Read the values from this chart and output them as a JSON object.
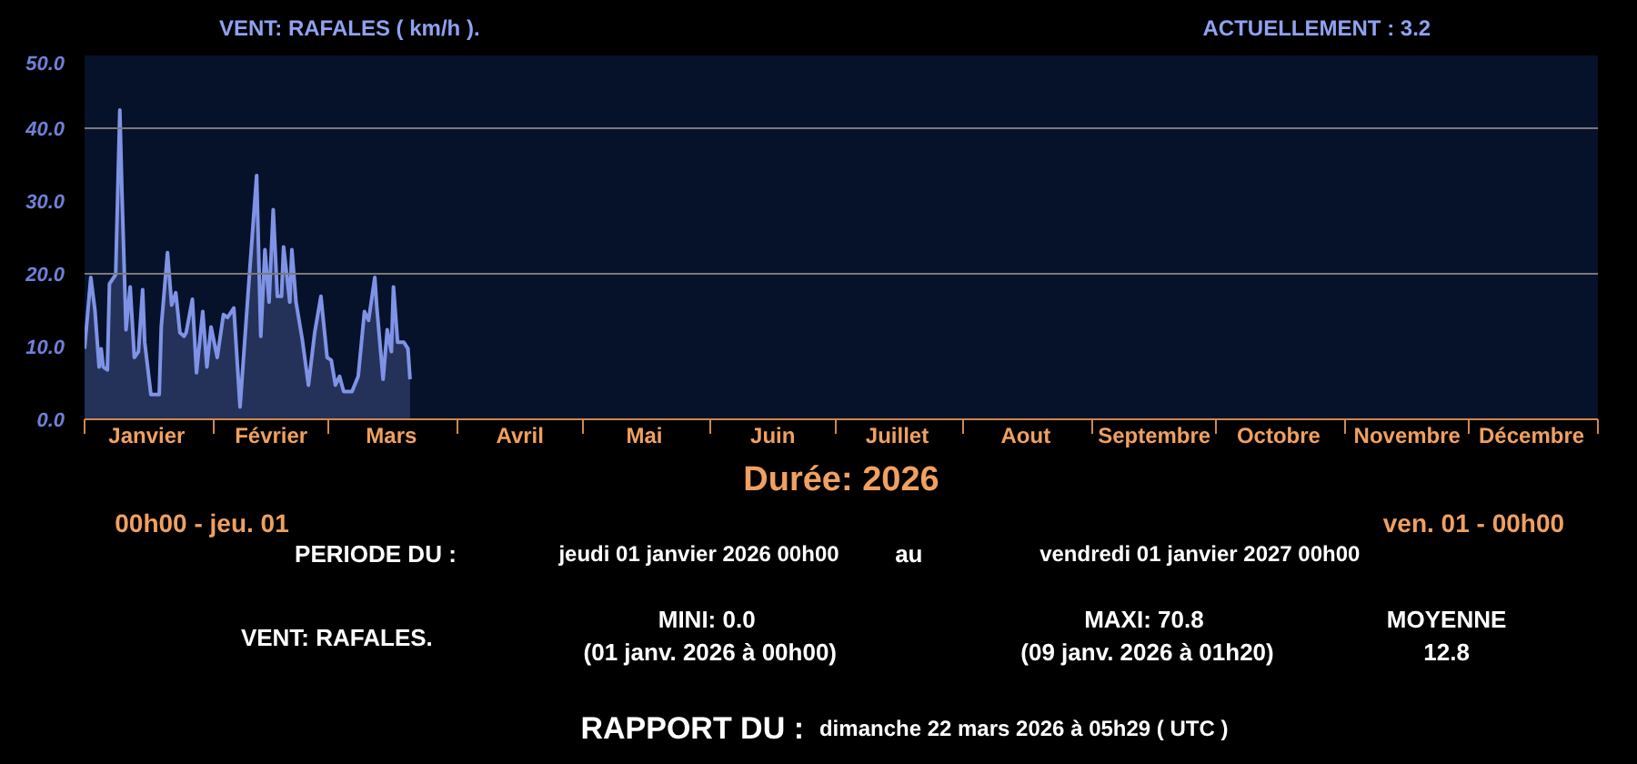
{
  "chart_data": {
    "type": "area",
    "title": "VENT: RAFALES ( km/h ).",
    "xlabel": "Durée: 2026",
    "annotations": [
      "ACTUELLEMENT :    3.2",
      "00h00 - jeu. 01",
      "ven. 01 - 00h00",
      "PERIODE DU    :",
      "jeudi 01 janvier 2026 00h00",
      "au",
      "vendredi 01 janvier 2027 00h00",
      "VENT: RAFALES.",
      "MINI:  0.0",
      "(01 janv. 2026 à 00h00)",
      "MAXI:  70.8",
      "(09 janv. 2026 à 01h20)",
      "MOYENNE",
      "12.8",
      "RAPPORT DU :",
      "dimanche 22 mars 2026 à 05h29 ( UTC )"
    ],
    "x": [
      "2026-01-01T00:00",
      "2026-01-02T12:00",
      "2026-01-03T12:00",
      "2026-01-04T12:00",
      "2026-01-05T00:00",
      "2026-01-05T12:00",
      "2026-01-06T12:00",
      "2026-01-07T00:00",
      "2026-01-08T12:00",
      "2026-01-09T12:00",
      "2026-01-10T00:00",
      "2026-01-11T00:00",
      "2026-01-12T00:00",
      "2026-01-13T00:00",
      "2026-01-14T00:00",
      "2026-01-15T00:00",
      "2026-01-15T12:00",
      "2026-01-17T00:00",
      "2026-01-19T00:00",
      "2026-01-19T12:00",
      "2026-01-21T00:00",
      "2026-01-22T00:00",
      "2026-01-23T00:00",
      "2026-01-24T00:00",
      "2026-01-25T00:00",
      "2026-01-25T12:00",
      "2026-01-27T00:00",
      "2026-01-28T00:00",
      "2026-01-29T12:00",
      "2026-01-30T12:00",
      "2026-01-31T12:00",
      "2026-02-02T00:00",
      "2026-02-03T12:00",
      "2026-02-04T12:00",
      "2026-02-06T00:00",
      "2026-02-07T12:00",
      "2026-02-09T12:00",
      "2026-02-11T12:00",
      "2026-02-12T12:00",
      "2026-02-13T12:00",
      "2026-02-14T12:00",
      "2026-02-15T12:00",
      "2026-02-16T12:00",
      "2026-02-17T12:00",
      "2026-02-18T00:00",
      "2026-02-19T12:00",
      "2026-02-20T00:00",
      "2026-02-21T00:00",
      "2026-02-22T12:00",
      "2026-02-24T00:00",
      "2026-02-25T12:00",
      "2026-02-27T00:00",
      "2026-02-28T12:00",
      "2026-03-01T12:00",
      "2026-03-02T12:00",
      "2026-03-03T12:00",
      "2026-03-04T12:00",
      "2026-03-06T12:00",
      "2026-03-08T00:00",
      "2026-03-09T12:00",
      "2026-03-10T12:00",
      "2026-03-12T00:00",
      "2026-03-12T12:00",
      "2026-03-14T00:00",
      "2026-03-15T00:00",
      "2026-03-16T00:00",
      "2026-03-16T12:00",
      "2026-03-17T12:00",
      "2026-03-19T00:00",
      "2026-03-20T00:00",
      "2026-03-20T12:00"
    ],
    "series": [
      {
        "color": "#7f93e6",
        "values": [
          9.7,
          19.5,
          15,
          7.2,
          9.7,
          7.2,
          6.8,
          18.6,
          19.9,
          42.5,
          31.4,
          12.3,
          18.2,
          8.5,
          9.3,
          17.8,
          10.6,
          3.4,
          3.4,
          12.7,
          22.9,
          15.7,
          17.4,
          11.9,
          11.4,
          11.9,
          16.5,
          6.4,
          14.8,
          7.2,
          12.7,
          8.5,
          14.4,
          14,
          15.3,
          1.7,
          17.8,
          33.5,
          11.4,
          23.3,
          16.1,
          28.8,
          16.9,
          16.9,
          23.7,
          16.1,
          23.3,
          16.1,
          11,
          4.7,
          11.9,
          16.9,
          8.5,
          8.1,
          4.7,
          5.9,
          3.8,
          3.8,
          5.9,
          14.8,
          13.6,
          19.5,
          15.3,
          5.5,
          12.3,
          9.3,
          18.2,
          10.6,
          10.6,
          9.7,
          5.5
        ]
      }
    ],
    "xlim": [
      "2026-01-01",
      "2027-01-01"
    ],
    "xticks": [
      {
        "value": "2026-01-01",
        "label": null
      },
      {
        "value": "2026-02-01",
        "label": null
      },
      {
        "value": "2026-03-01",
        "label": null
      },
      {
        "value": "2026-04-01",
        "label": null
      },
      {
        "value": "2026-05-01",
        "label": null
      },
      {
        "value": "2026-06-01",
        "label": null
      },
      {
        "value": "2026-07-01",
        "label": null
      },
      {
        "value": "2026-08-01",
        "label": null
      },
      {
        "value": "2026-09-01",
        "label": null
      },
      {
        "value": "2026-10-01",
        "label": null
      },
      {
        "value": "2026-11-01",
        "label": null
      },
      {
        "value": "2026-12-01",
        "label": null
      },
      {
        "value": "2027-01-01",
        "label": null
      },
      {
        "value": "2026-01-16",
        "label": "Janvier"
      },
      {
        "value": "2026-02-15",
        "label": "Février"
      },
      {
        "value": "2026-03-16",
        "label": "Mars"
      },
      {
        "value": "2026-04-16",
        "label": "Avril"
      },
      {
        "value": "2026-05-16",
        "label": "Mai"
      },
      {
        "value": "2026-06-16",
        "label": "Juin"
      },
      {
        "value": "2026-07-16",
        "label": "Juillet"
      },
      {
        "value": "2026-08-16",
        "label": "Aout"
      },
      {
        "value": "2026-09-16",
        "label": "Septembre"
      },
      {
        "value": "2026-10-16",
        "label": "Octobre"
      },
      {
        "value": "2026-11-16",
        "label": "Novembre"
      },
      {
        "value": "2026-12-16",
        "label": "Décembre"
      }
    ],
    "ylim": [
      0,
      50
    ],
    "yticks": [
      {
        "value": 0,
        "label": "0.0"
      },
      {
        "value": 10,
        "label": "10.0"
      },
      {
        "value": 20,
        "label": "20.0"
      },
      {
        "value": 30,
        "label": "30.0"
      },
      {
        "value": 40,
        "label": "40.0"
      },
      {
        "value": 50,
        "label": "50.0"
      }
    ],
    "ref_lines": [
      {
        "axis": "y",
        "value": 20,
        "color": "#7a7a7a"
      },
      {
        "axis": "y",
        "value": 40,
        "color": "#7a7a7a"
      }
    ]
  }
}
